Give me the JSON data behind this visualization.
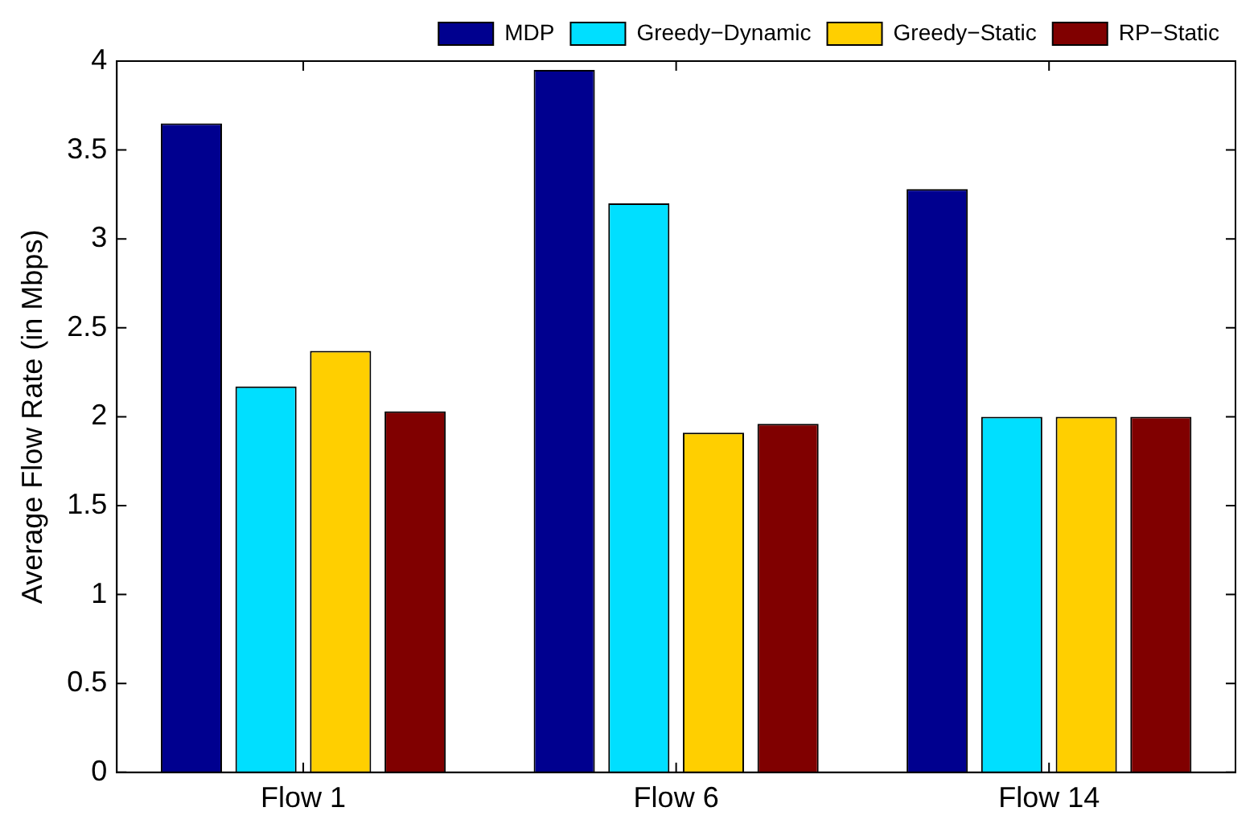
{
  "chart_data": {
    "type": "bar",
    "ylabel": "Average Flow Rate (in Mbps)",
    "categories": [
      "Flow 1",
      "Flow 6",
      "Flow 14"
    ],
    "series": [
      {
        "name": "MDP",
        "color": "#00008f",
        "values": [
          3.65,
          3.95,
          3.28
        ]
      },
      {
        "name": "Greedy−Dynamic",
        "color": "#00dfff",
        "values": [
          2.17,
          3.2,
          2.0
        ]
      },
      {
        "name": "Greedy−Static",
        "color": "#ffcf00",
        "values": [
          2.37,
          1.91,
          2.0
        ]
      },
      {
        "name": "RP−Static",
        "color": "#800000",
        "values": [
          2.03,
          1.96,
          2.0
        ]
      }
    ],
    "ylim": [
      0,
      4
    ],
    "yticks": [
      0,
      0.5,
      1,
      1.5,
      2,
      2.5,
      3,
      3.5,
      4
    ],
    "grid": false,
    "legend": "top right"
  }
}
